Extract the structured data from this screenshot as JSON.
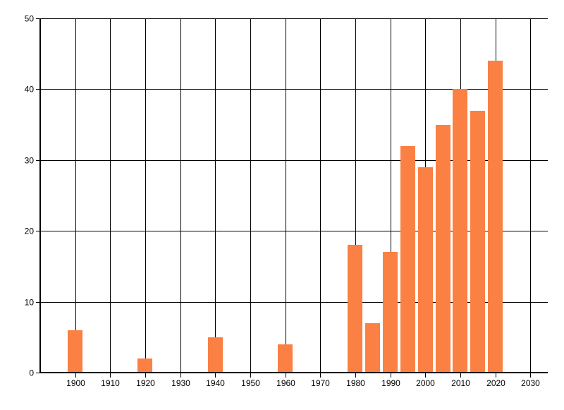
{
  "chart_data": {
    "type": "bar",
    "title": "",
    "xlabel": "",
    "ylabel": "",
    "x": [
      1900,
      1920,
      1940,
      1960,
      1980,
      1985,
      1990,
      1995,
      2000,
      2005,
      2010,
      2015,
      2020
    ],
    "values": [
      6,
      2,
      5,
      4,
      18,
      7,
      17,
      32,
      29,
      35,
      40,
      37,
      44
    ],
    "x_tick_labels": [
      "1900",
      "1910",
      "1920",
      "1930",
      "1940",
      "1950",
      "1960",
      "1970",
      "1980",
      "1990",
      "2000",
      "2010",
      "2020",
      "2030"
    ],
    "y_tick_labels": [
      "0",
      "10",
      "20",
      "30",
      "40",
      "50"
    ],
    "xlim": [
      1890,
      2035
    ],
    "ylim": [
      0,
      50
    ],
    "grid": "on",
    "legend": "none",
    "bar_width_years": 4.2,
    "colors": {
      "bar": "#FB8043",
      "grid": "#000000",
      "axis": "#000000",
      "tick_label": "#000000",
      "background": "#FFFFFF"
    }
  }
}
